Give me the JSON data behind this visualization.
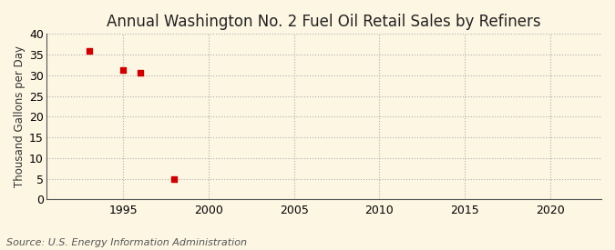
{
  "title": "Annual Washington No. 2 Fuel Oil Retail Sales by Refiners",
  "ylabel": "Thousand Gallons per Day",
  "source": "Source: U.S. Energy Information Administration",
  "background_color": "#fdf6e3",
  "plot_bg_color": "#fdf6e3",
  "data_points": [
    {
      "year": 1993,
      "value": 35.8
    },
    {
      "year": 1995,
      "value": 31.3
    },
    {
      "year": 1996,
      "value": 30.6
    },
    {
      "year": 1998,
      "value": 5.0
    }
  ],
  "marker_color": "#cc0000",
  "marker": "s",
  "marker_size": 16,
  "xlim": [
    1990.5,
    2023
  ],
  "ylim": [
    0,
    40
  ],
  "xticks": [
    1995,
    2000,
    2005,
    2010,
    2015,
    2020
  ],
  "yticks": [
    0,
    5,
    10,
    15,
    20,
    25,
    30,
    35,
    40
  ],
  "grid_color": "#b0b0b0",
  "grid_style": ":",
  "title_fontsize": 12,
  "label_fontsize": 8.5,
  "tick_fontsize": 9,
  "source_fontsize": 8
}
